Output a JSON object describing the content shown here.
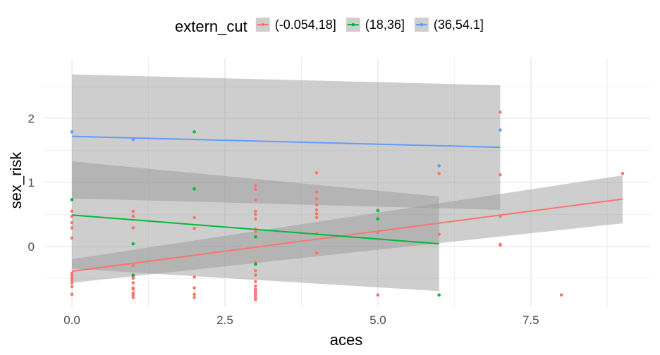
{
  "chart_data": {
    "type": "scatter",
    "xlabel": "aces",
    "ylabel": "sex_risk",
    "xlim": [
      -0.45,
      9.45
    ],
    "ylim": [
      -0.95,
      2.95
    ],
    "x_ticks": [
      0.0,
      2.5,
      5.0,
      7.5
    ],
    "x_tick_labels": [
      "0.0",
      "2.5",
      "5.0",
      "7.5"
    ],
    "y_ticks": [
      0,
      1,
      2
    ],
    "y_tick_labels": [
      "0",
      "1",
      "2"
    ],
    "grid": true,
    "legend": {
      "title": "extern_cut",
      "position": "top"
    },
    "series": [
      {
        "name": "(-0.054,18]",
        "color": "#f8766d",
        "points": [
          [
            0,
            0.55
          ],
          [
            0,
            0.47
          ],
          [
            0,
            0.37
          ],
          [
            0,
            0.29
          ],
          [
            0,
            0.13
          ],
          [
            0,
            -0.42
          ],
          [
            0,
            -0.46
          ],
          [
            0,
            -0.5
          ],
          [
            0,
            -0.53
          ],
          [
            0,
            -0.57
          ],
          [
            0,
            -0.63
          ],
          [
            0,
            -0.75
          ],
          [
            1,
            0.55
          ],
          [
            1,
            0.47
          ],
          [
            1,
            0.29
          ],
          [
            1,
            -0.3
          ],
          [
            1,
            -0.45
          ],
          [
            1,
            -0.47
          ],
          [
            1,
            -0.5
          ],
          [
            1,
            -0.57
          ],
          [
            1,
            -0.65
          ],
          [
            1,
            -0.67
          ],
          [
            1,
            -0.73
          ],
          [
            1,
            -0.76
          ],
          [
            1,
            -0.8
          ],
          [
            2,
            0.45
          ],
          [
            2,
            0.28
          ],
          [
            2,
            -0.48
          ],
          [
            2,
            -0.65
          ],
          [
            2,
            -0.75
          ],
          [
            2,
            -0.8
          ],
          [
            3,
            0.95
          ],
          [
            3,
            0.89
          ],
          [
            3,
            0.73
          ],
          [
            3,
            0.55
          ],
          [
            3,
            0.5
          ],
          [
            3,
            0.43
          ],
          [
            3,
            0.27
          ],
          [
            3,
            0.23
          ],
          [
            3,
            -0.25
          ],
          [
            3,
            -0.38
          ],
          [
            3,
            -0.45
          ],
          [
            3,
            -0.55
          ],
          [
            3,
            -0.62
          ],
          [
            3,
            -0.67
          ],
          [
            3,
            -0.7
          ],
          [
            3,
            -0.72
          ],
          [
            3,
            -0.76
          ],
          [
            3,
            -0.8
          ],
          [
            3,
            -0.83
          ],
          [
            4,
            1.15
          ],
          [
            4,
            0.85
          ],
          [
            4,
            0.74
          ],
          [
            4,
            0.65
          ],
          [
            4,
            0.57
          ],
          [
            4,
            0.51
          ],
          [
            4,
            0.45
          ],
          [
            4,
            0.2
          ],
          [
            4,
            -0.1
          ],
          [
            5,
            0.22
          ],
          [
            5,
            -0.76
          ],
          [
            6,
            1.14
          ],
          [
            6,
            0.19
          ],
          [
            7,
            2.1
          ],
          [
            7,
            1.12
          ],
          [
            7,
            0.47
          ],
          [
            7,
            0.03
          ],
          [
            7,
            0.02
          ],
          [
            8,
            -0.76
          ],
          [
            9,
            1.14
          ]
        ],
        "fit": {
          "x": [
            0,
            9
          ],
          "y": [
            -0.39,
            0.74
          ]
        },
        "band": {
          "x": [
            0,
            9
          ],
          "lower": [
            -0.57,
            0.36
          ],
          "upper": [
            -0.2,
            1.11
          ]
        }
      },
      {
        "name": "(18,36]",
        "color": "#00ba38",
        "points": [
          [
            0,
            0.73
          ],
          [
            1,
            0.04
          ],
          [
            1,
            -0.45
          ],
          [
            2,
            1.79
          ],
          [
            2,
            0.9
          ],
          [
            3,
            0.15
          ],
          [
            3,
            -0.28
          ],
          [
            5,
            0.56
          ],
          [
            5,
            0.43
          ],
          [
            6,
            -0.76
          ]
        ],
        "fit": {
          "x": [
            0,
            6
          ],
          "y": [
            0.49,
            0.04
          ]
        },
        "band": {
          "x": [
            0,
            6
          ],
          "lower": [
            -0.35,
            -0.7
          ],
          "upper": [
            1.33,
            0.78
          ]
        }
      },
      {
        "name": "(36,54.1]",
        "color": "#619cff",
        "points": [
          [
            0,
            1.79
          ],
          [
            1,
            1.67
          ],
          [
            6,
            1.26
          ],
          [
            7,
            1.82
          ]
        ],
        "fit": {
          "x": [
            0,
            7
          ],
          "y": [
            1.72,
            1.55
          ]
        },
        "band": {
          "x": [
            0,
            7
          ],
          "lower": [
            0.75,
            0.57
          ],
          "upper": [
            2.69,
            2.52
          ]
        }
      }
    ]
  }
}
